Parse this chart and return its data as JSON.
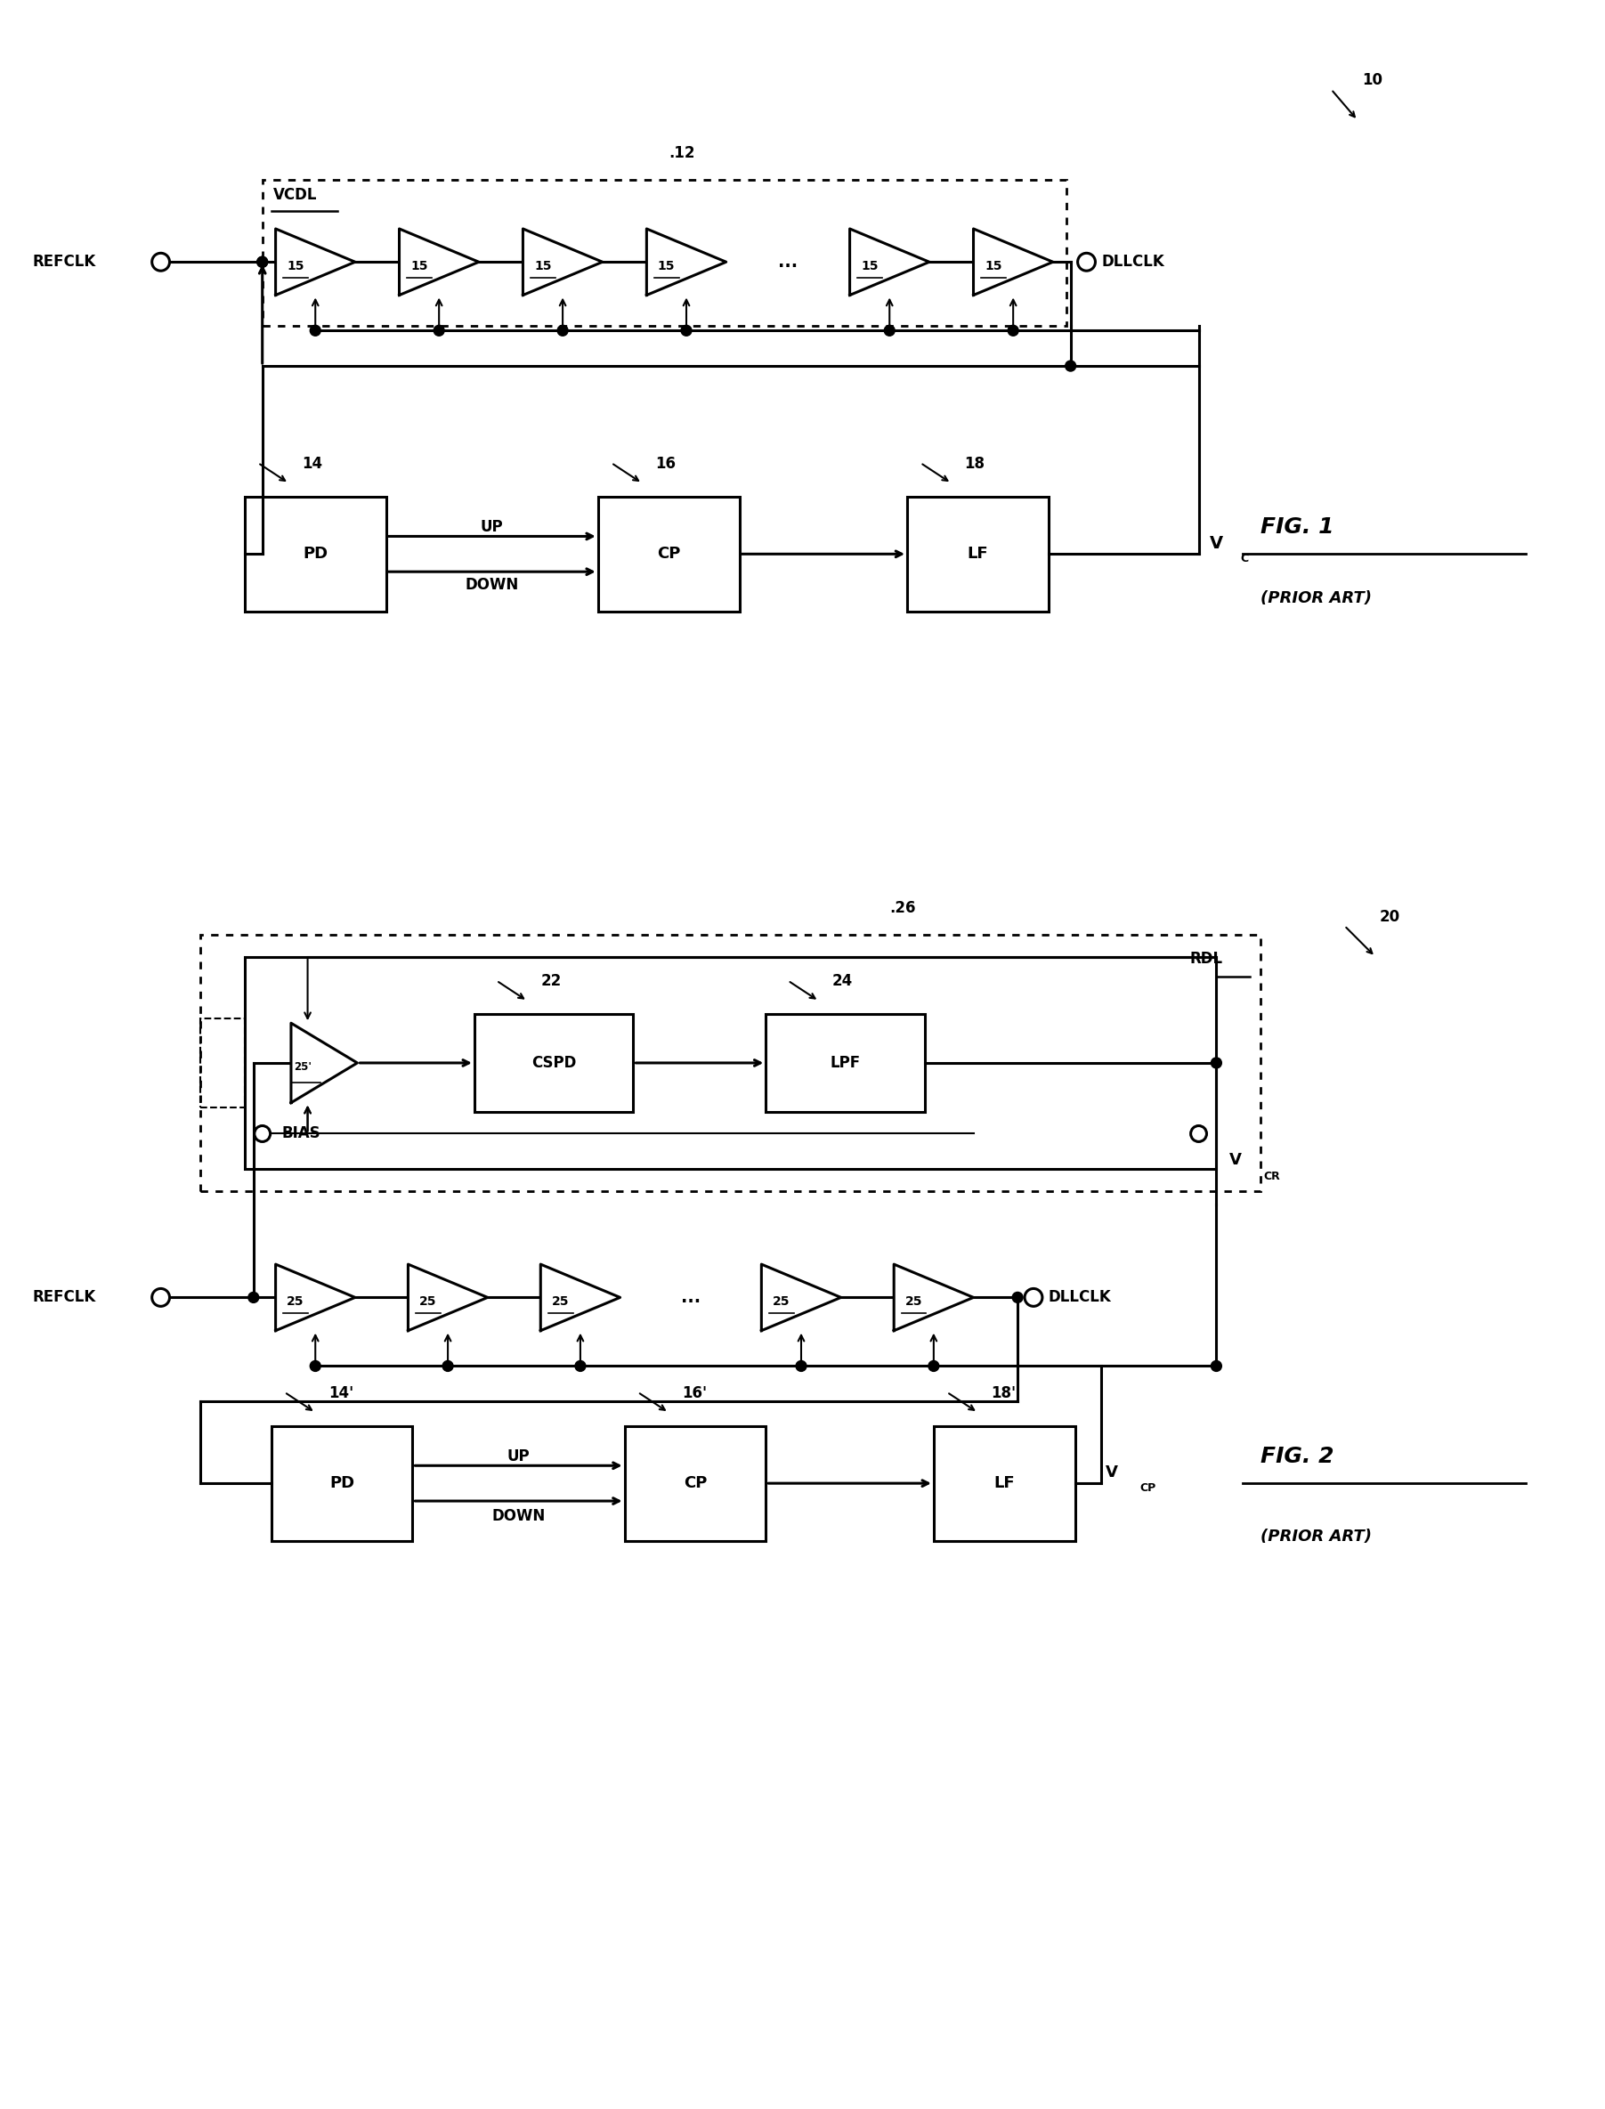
{
  "bg_color": "#ffffff",
  "fig1": {
    "label": "10",
    "box12_label": "12",
    "vcdl_label": "VCDL",
    "refclk_label": "REFCLK",
    "dllclk_label": "DLLCLK",
    "buf_label": "15",
    "pd_label": "PD",
    "pd_num": "14",
    "cp_label": "CP",
    "cp_num": "16",
    "lf_label": "LF",
    "lf_num": "18",
    "vc_label": "V",
    "vc_sub": "C",
    "up_label": "UP",
    "down_label": "DOWN",
    "fig_label": "FIG. 1",
    "prior_art": "(PRIOR ART)"
  },
  "fig2": {
    "label": "20",
    "box26_label": "26",
    "rdl_label": "RDL",
    "refclk_label": "REFCLK",
    "dllclk_label": "DLLCLK",
    "buf_label": "25",
    "rdl_buf_label": "25'",
    "cspd_label": "CSPD",
    "cspd_num": "22",
    "lpf_label": "LPF",
    "lpf_num": "24",
    "bias_label": "BIAS",
    "vcr_label": "V",
    "vcr_sub": "CR",
    "pd_label": "PD",
    "pd_num": "14'",
    "cp_label": "CP",
    "cp_num": "16'",
    "lf_label": "LF",
    "lf_num": "18'",
    "vcp_label": "V",
    "vcp_sub": "CP",
    "up_label": "UP",
    "down_label": "DOWN",
    "fig_label": "FIG. 2",
    "prior_art": "(PRIOR ART)"
  }
}
